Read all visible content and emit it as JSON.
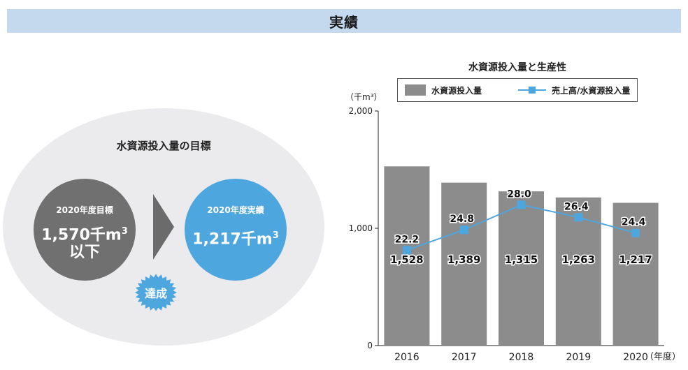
{
  "header": {
    "title": "実績"
  },
  "target": {
    "heading": "水資源投入量の目標",
    "goal_label": "2020年度目標",
    "goal_value_line1": "1,570千m",
    "goal_value_sup": "3",
    "goal_value_line2": "以下",
    "actual_label": "2020年度実績",
    "actual_value": "1,217千m",
    "actual_value_sup": "3",
    "badge": "達成",
    "colors": {
      "goal": "#707070",
      "actual": "#4ea6de",
      "badge": "#4ea6de",
      "arrow": "#6b6b6b"
    }
  },
  "chart_data": {
    "type": "bar",
    "title": "水資源投入量と生産性",
    "ylabel": "（千m³）",
    "xlabel": "（年度）",
    "categories": [
      "2016",
      "2017",
      "2018",
      "2019",
      "2020"
    ],
    "ylim": [
      0,
      2000
    ],
    "y_ticks": [
      "0",
      "1,000",
      "2,000"
    ],
    "y_tick_values": [
      0,
      1000,
      2000
    ],
    "series": [
      {
        "name": "水資源投入量",
        "kind": "bar",
        "values": [
          1528,
          1389,
          1315,
          1263,
          1217
        ],
        "labels": [
          "1,528",
          "1,389",
          "1,315",
          "1,263",
          "1,217"
        ],
        "color": "#8c8c8c"
      },
      {
        "name": "売上高/水資源投入量",
        "kind": "line",
        "values": [
          22.2,
          24.8,
          28.0,
          26.4,
          24.4
        ],
        "labels": [
          "22.2",
          "24.8",
          "28.0",
          "26.4",
          "24.4"
        ],
        "color": "#4ea6de"
      }
    ],
    "legend_placement": "top",
    "grid": false
  }
}
